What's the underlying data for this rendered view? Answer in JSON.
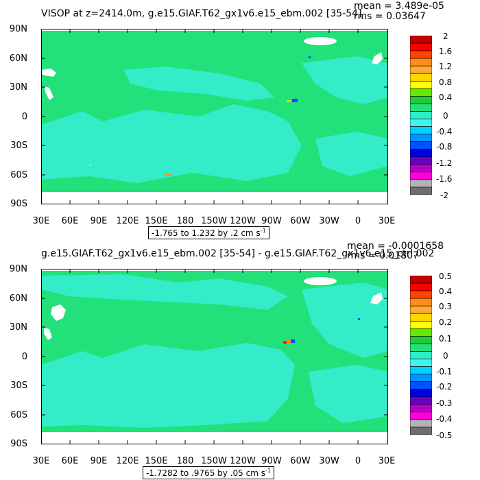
{
  "panels": [
    {
      "title": "VISOP at z=2414.0m, g.e15.GIAF.T62_gx1v6.e15_ebm.002 [35-54]",
      "mean": "mean = 3.489e-05",
      "rms": "rms = 0.03647",
      "range_text": "-1.765 to 1.232 by .2 cm s",
      "range_exp": "-1",
      "lat_labels": [
        "90N",
        "60N",
        "30N",
        "0",
        "30S",
        "60S",
        "90S"
      ],
      "lon_labels": [
        "30E",
        "60E",
        "90E",
        "120E",
        "150E",
        "180",
        "150W",
        "120W",
        "90W",
        "60W",
        "30W",
        "0",
        "30E"
      ],
      "colorbar_labels": [
        "2",
        "1.6",
        "1.2",
        "0.8",
        "0.4",
        "0",
        "-0.4",
        "-0.8",
        "-1.2",
        "-1.6",
        "-2"
      ]
    },
    {
      "title": "g.e15.GIAF.T62_gx1v6.e15_ebm.002 [35-54] - g.e15.GIAF.T62_gx1v6.e15_ctrl.002",
      "mean": "mean = -0.0001658",
      "rms": "rms = 0.01807",
      "range_text": "-1.7282 to .9765 by .05 cm s",
      "range_exp": "-1",
      "lat_labels": [
        "90N",
        "60N",
        "30N",
        "0",
        "30S",
        "60S",
        "90S"
      ],
      "lon_labels": [
        "30E",
        "60E",
        "90E",
        "120E",
        "150E",
        "180",
        "150W",
        "120W",
        "90W",
        "60W",
        "30W",
        "0",
        "30E"
      ],
      "colorbar_labels": [
        "0.5",
        "0.4",
        "0.3",
        "0.2",
        "0.1",
        "0",
        "-0.1",
        "-0.2",
        "-0.3",
        "-0.4",
        "-0.5"
      ]
    }
  ],
  "colors": {
    "colorbar": [
      "#c80000",
      "#ff0000",
      "#ff4400",
      "#ff8c1a",
      "#ffaa33",
      "#ffd700",
      "#ffff00",
      "#66e600",
      "#22cc33",
      "#22e07a",
      "#33ecc8",
      "#44f2f2",
      "#00d2ff",
      "#0096ff",
      "#0050ff",
      "#0000e6",
      "#6a00c8",
      "#b400c8",
      "#ff00dd",
      "#b4b4b4",
      "#6e6e6e"
    ],
    "ocean_base": "#22e07a",
    "ocean_negative": "#33ecc8",
    "land": "#ffffff"
  }
}
